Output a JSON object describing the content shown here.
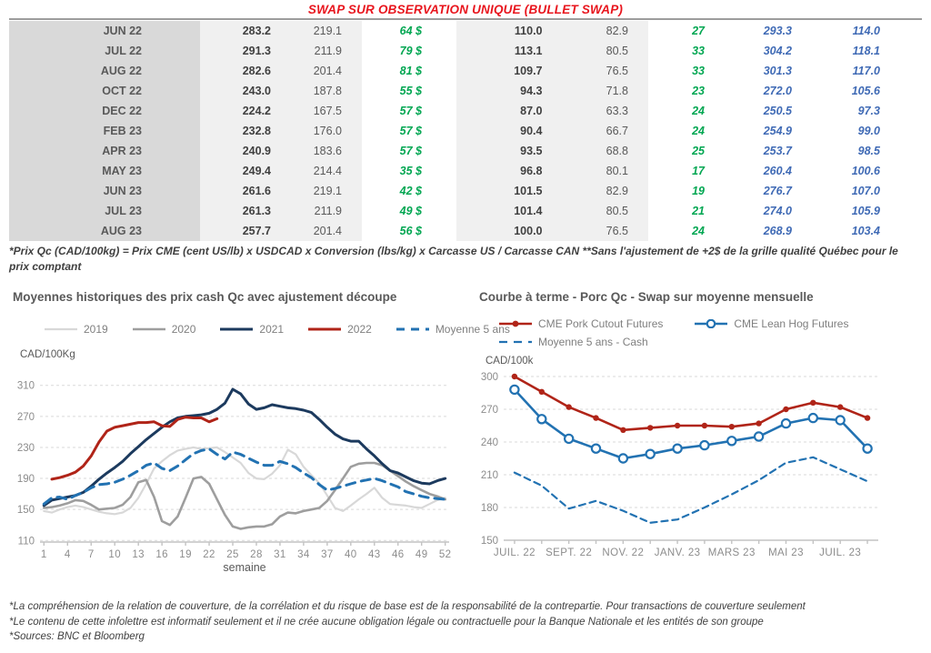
{
  "title": "SWAP SUR OBSERVATION UNIQUE (BULLET SWAP)",
  "colors": {
    "title_red": "#e8151d",
    "table_green": "#00a651",
    "table_blue": "#3f6ab5",
    "series_2019": "#d8d8d8",
    "series_2020": "#9e9e9e",
    "series_2021": "#1c3a5e",
    "series_2022": "#b02418",
    "series_blue": "#2272b2"
  },
  "table": {
    "rows": [
      {
        "month": "JUN 22",
        "cells": [
          "283.2",
          "219.1",
          "64 $",
          "110.0",
          "82.9",
          "27",
          "293.3",
          "114.0"
        ]
      },
      {
        "month": "JUL 22",
        "cells": [
          "291.3",
          "211.9",
          "79 $",
          "113.1",
          "80.5",
          "33",
          "304.2",
          "118.1"
        ]
      },
      {
        "month": "AUG 22",
        "cells": [
          "282.6",
          "201.4",
          "81 $",
          "109.7",
          "76.5",
          "33",
          "301.3",
          "117.0"
        ]
      },
      {
        "month": "OCT 22",
        "cells": [
          "243.0",
          "187.8",
          "55 $",
          "94.3",
          "71.8",
          "23",
          "272.0",
          "105.6"
        ]
      },
      {
        "month": "DEC 22",
        "cells": [
          "224.2",
          "167.5",
          "57 $",
          "87.0",
          "63.3",
          "24",
          "250.5",
          "97.3"
        ]
      },
      {
        "month": "FEB 23",
        "cells": [
          "232.8",
          "176.0",
          "57 $",
          "90.4",
          "66.7",
          "24",
          "254.9",
          "99.0"
        ]
      },
      {
        "month": "APR 23",
        "cells": [
          "240.9",
          "183.6",
          "57 $",
          "93.5",
          "68.8",
          "25",
          "253.7",
          "98.5"
        ]
      },
      {
        "month": "MAY 23",
        "cells": [
          "249.4",
          "214.4",
          "35 $",
          "96.8",
          "80.1",
          "17",
          "260.4",
          "100.6"
        ]
      },
      {
        "month": "JUN 23",
        "cells": [
          "261.6",
          "219.1",
          "42 $",
          "101.5",
          "82.9",
          "19",
          "276.7",
          "107.0"
        ]
      },
      {
        "month": "JUL 23",
        "cells": [
          "261.3",
          "211.9",
          "49 $",
          "101.4",
          "80.5",
          "21",
          "274.0",
          "105.9"
        ]
      },
      {
        "month": "AUG 23",
        "cells": [
          "257.7",
          "201.4",
          "56 $",
          "100.0",
          "76.5",
          "24",
          "268.9",
          "103.4"
        ]
      }
    ]
  },
  "table_note": "*Prix Qc (CAD/100kg) = Prix CME (cent US/lb) x USDCAD x Conversion (lbs/kg) x Carcasse US / Carcasse CAN **Sans l'ajustement de +2$ de la grille qualité Québec pour le prix comptant",
  "chart_data": [
    {
      "type": "line",
      "title": "Moyennes historiques des prix cash Qc avec ajustement découpe",
      "ylabel": "CAD/100Kg",
      "xlabel": "semaine",
      "xlim": [
        0.5,
        52.5
      ],
      "ylim": [
        108,
        312
      ],
      "yticks": [
        110,
        150,
        190,
        230,
        270,
        310
      ],
      "xticks": [
        1,
        4,
        7,
        10,
        13,
        16,
        19,
        22,
        25,
        28,
        31,
        34,
        37,
        40,
        43,
        46,
        49,
        52
      ],
      "grid": "horizontal-dashed",
      "legend_position": "top",
      "series": [
        {
          "name": "2019",
          "color": "#d8d8d8",
          "lw": 2.2,
          "xstart": 1,
          "values": [
            148,
            146,
            150,
            153,
            155,
            153,
            150,
            147,
            145,
            144,
            146,
            152,
            165,
            183,
            203,
            212,
            220,
            226,
            228,
            230,
            228,
            229,
            230,
            224,
            217,
            210,
            197,
            190,
            189,
            196,
            207,
            227,
            221,
            205,
            194,
            184,
            168,
            152,
            148,
            155,
            163,
            170,
            178,
            165,
            157,
            156,
            155,
            153,
            152,
            157,
            162,
            165
          ]
        },
        {
          "name": "2020",
          "color": "#9e9e9e",
          "lw": 2.6,
          "xstart": 1,
          "values": [
            152,
            153,
            155,
            158,
            162,
            161,
            156,
            150,
            151,
            152,
            156,
            166,
            185,
            188,
            166,
            135,
            130,
            141,
            165,
            190,
            192,
            183,
            163,
            143,
            128,
            125,
            127,
            128,
            128,
            131,
            141,
            146,
            145,
            148,
            150,
            152,
            161,
            175,
            190,
            205,
            209,
            210,
            210,
            207,
            200,
            193,
            186,
            180,
            175,
            170,
            167,
            163
          ]
        },
        {
          "name": "2021",
          "color": "#1c3a5e",
          "lw": 3,
          "xstart": 1,
          "values": [
            155,
            162,
            164,
            166,
            168,
            172,
            180,
            189,
            197,
            204,
            212,
            222,
            231,
            240,
            248,
            256,
            263,
            268,
            270,
            271,
            272,
            274,
            279,
            287,
            305,
            299,
            286,
            279,
            281,
            285,
            283,
            281,
            280,
            278,
            275,
            266,
            256,
            247,
            241,
            238,
            238,
            228,
            219,
            209,
            200,
            197,
            192,
            187,
            184,
            183,
            187,
            190
          ]
        },
        {
          "name": "2022",
          "color": "#b02418",
          "lw": 3,
          "xstart": 2,
          "values": [
            189,
            191,
            194,
            198,
            206,
            219,
            237,
            251,
            256,
            258,
            260,
            262,
            262,
            263,
            258,
            257,
            266,
            269,
            268,
            268,
            263,
            267
          ]
        },
        {
          "name": "Moyenne 5 ans",
          "color": "#2272b2",
          "lw": 3,
          "dash": "10 7",
          "xstart": 1,
          "values": [
            157,
            165,
            166,
            163,
            168,
            172,
            178,
            182,
            183,
            185,
            189,
            194,
            200,
            207,
            210,
            203,
            200,
            206,
            214,
            222,
            226,
            228,
            221,
            215,
            224,
            221,
            216,
            211,
            207,
            207,
            212,
            209,
            204,
            197,
            191,
            182,
            175,
            177,
            180,
            183,
            186,
            188,
            190,
            187,
            183,
            179,
            173,
            170,
            167,
            165,
            164,
            163
          ]
        }
      ]
    },
    {
      "type": "line",
      "title": "Courbe à terme - Porc Qc - Swap sur moyenne mensuelle",
      "ylabel": "CAD/100k",
      "xlabel": "",
      "xlim": [
        -0.4,
        13.4
      ],
      "ylim": [
        150,
        300
      ],
      "yticks": [
        150,
        180,
        210,
        240,
        270,
        300
      ],
      "xticks": [
        0,
        2,
        4,
        6,
        8,
        10,
        12
      ],
      "xticklabels": [
        "JUIL. 22",
        "SEPT. 22",
        "NOV. 22",
        "JANV. 23",
        "MARS 23",
        "MAI 23",
        "JUIL. 23"
      ],
      "xminor": [
        0,
        1,
        2,
        3,
        4,
        5,
        6,
        7,
        8,
        9,
        10,
        11,
        12,
        13
      ],
      "grid": "horizontal-dashed",
      "legend_position": "top",
      "series": [
        {
          "name": "CME Pork Cutout Futures",
          "color": "#b02418",
          "lw": 2.6,
          "marker": "filled",
          "xstart": 0,
          "values": [
            300,
            286,
            272,
            262,
            251,
            253,
            255,
            255,
            254,
            257,
            270,
            276,
            272,
            262
          ]
        },
        {
          "name": "CME Lean Hog Futures",
          "color": "#2272b2",
          "lw": 2.6,
          "marker": "open",
          "xstart": 0,
          "values": [
            288,
            261,
            243,
            234,
            225,
            229,
            234,
            237,
            241,
            245,
            257,
            262,
            260,
            234
          ]
        },
        {
          "name": "Moyenne 5 ans - Cash",
          "color": "#2272b2",
          "lw": 2.2,
          "dash": "7 5",
          "xstart": 0,
          "values": [
            212,
            200,
            179,
            186,
            177,
            166,
            169,
            180,
            192,
            205,
            221,
            226,
            215,
            204
          ]
        }
      ]
    }
  ],
  "footnotes": [
    "*La compréhension de la relation de couverture, de la corrélation et du risque de base est de la responsabilité de la contrepartie. Pour transactions de couverture seulement",
    "*Le contenu de cette infolettre est informatif seulement et il ne crée aucune obligation légale ou contractuelle pour la Banque Nationale et les entités de son groupe",
    "*Sources: BNC et Bloomberg"
  ]
}
